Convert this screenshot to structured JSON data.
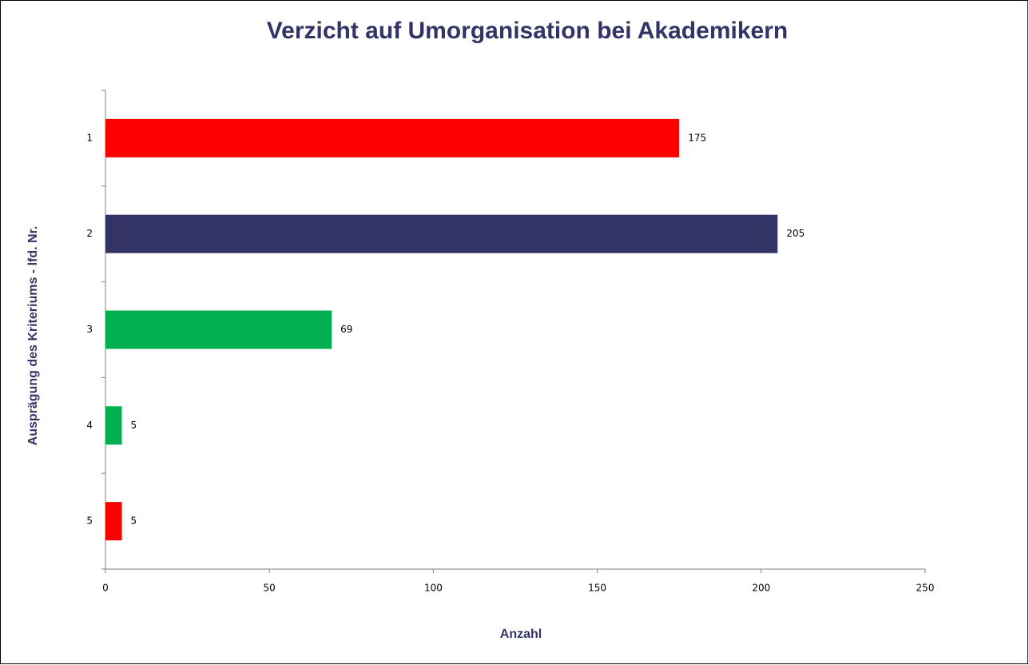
{
  "chart_data": {
    "type": "bar",
    "orientation": "horizontal",
    "title": "Verzicht auf Umorganisation bei Akademikern",
    "x_label": "Anzahl",
    "y_label": "Ausprägung des Kriteriums - lfd. Nr.",
    "categories": [
      "1",
      "2",
      "3",
      "4",
      "5"
    ],
    "values": [
      175,
      205,
      69,
      5,
      5
    ],
    "colors": [
      "#ff0000",
      "#333366",
      "#00b050",
      "#00b050",
      "#ff0000"
    ],
    "xlim": [
      0,
      250
    ],
    "xticks": [
      0,
      50,
      100,
      150,
      200,
      250
    ],
    "grid": false,
    "data_labels": true
  }
}
